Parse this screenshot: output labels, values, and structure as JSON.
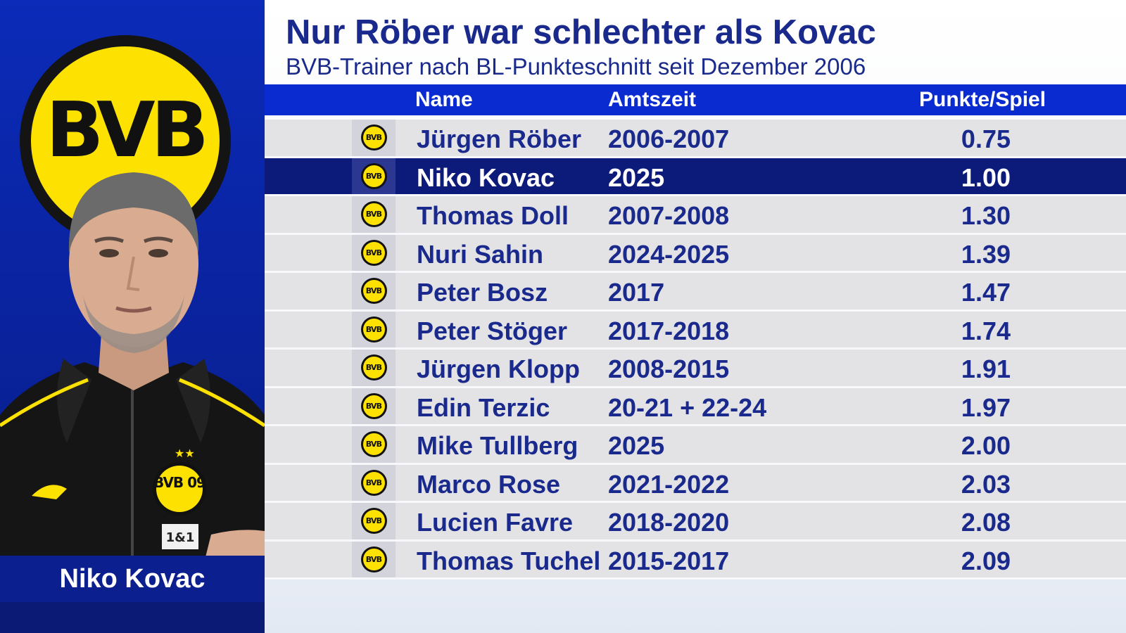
{
  "header": {
    "title": "Nur Röber war schlechter als Kovac",
    "subtitle": "BVB-Trainer nach BL-Punkteschnitt seit Dezember 2006"
  },
  "profile": {
    "caption": "Niko Kovac",
    "crest_text": "BVB",
    "shirt_badge_text": "BVB 09",
    "sponsor_text": "1&1"
  },
  "table": {
    "columns": [
      "Name",
      "Amtszeit",
      "Punkte/Spiel"
    ],
    "rows": [
      {
        "name": "Jürgen Röber",
        "amtszeit": "2006-2007",
        "punkte": "0.75",
        "highlight": false
      },
      {
        "name": "Niko Kovac",
        "amtszeit": "2025",
        "punkte": "1.00",
        "highlight": true
      },
      {
        "name": "Thomas Doll",
        "amtszeit": "2007-2008",
        "punkte": "1.30",
        "highlight": false
      },
      {
        "name": "Nuri Sahin",
        "amtszeit": "2024-2025",
        "punkte": "1.39",
        "highlight": false
      },
      {
        "name": "Peter Bosz",
        "amtszeit": "2017",
        "punkte": "1.47",
        "highlight": false
      },
      {
        "name": "Peter Stöger",
        "amtszeit": "2017-2018",
        "punkte": "1.74",
        "highlight": false
      },
      {
        "name": "Jürgen Klopp",
        "amtszeit": "2008-2015",
        "punkte": "1.91",
        "highlight": false
      },
      {
        "name": "Edin Terzic",
        "amtszeit": "20-21 + 22-24",
        "punkte": "1.97",
        "highlight": false
      },
      {
        "name": "Mike Tullberg",
        "amtszeit": "2025",
        "punkte": "2.00",
        "highlight": false
      },
      {
        "name": "Marco Rose",
        "amtszeit": "2021-2022",
        "punkte": "2.03",
        "highlight": false
      },
      {
        "name": "Lucien Favre",
        "amtszeit": "2018-2020",
        "punkte": "2.08",
        "highlight": false
      },
      {
        "name": "Thomas Tuchel",
        "amtszeit": "2015-2017",
        "punkte": "2.09",
        "highlight": false
      }
    ],
    "row_logo_text": "BVB"
  },
  "colors": {
    "brand_blue": "#1a2a8c",
    "header_blue": "#0a2bd0",
    "highlight_navy": "#0c1a7a",
    "bvb_yellow": "#fde100"
  },
  "icons": {
    "row_logo": "bvb-crest-icon",
    "panel_logo": "bvb-crest-large"
  }
}
